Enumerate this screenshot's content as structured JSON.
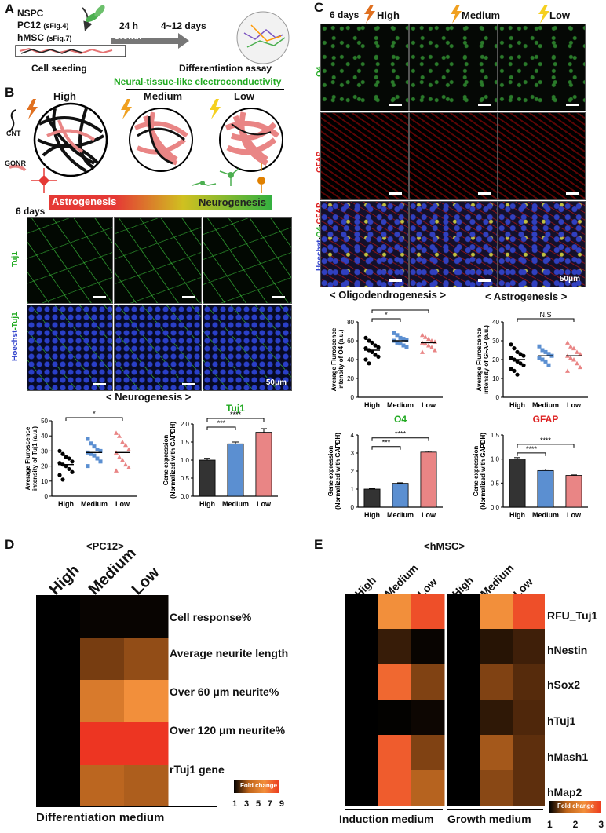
{
  "panelA": {
    "label": "A",
    "cells": [
      "NSPC",
      "PC12",
      "hMSC"
    ],
    "cell_refs": [
      "",
      "(sFig.4)",
      "(sFig.7)"
    ],
    "seeding": "Cell seeding",
    "time1": "24 h",
    "growth": "Growth",
    "time2": "4~12 days",
    "assay": "Differentiation assay"
  },
  "panelB": {
    "label": "B",
    "heading": "Neural-tissue-like electroconductivity",
    "levels": [
      "High",
      "Medium",
      "Low"
    ],
    "legend_cnt": "CNT",
    "legend_gonr": "GONR",
    "astro": "Astrogenesis",
    "neuro": "Neurogenesis",
    "days": "6 days",
    "row1": "Tuj1",
    "row2_a": "Hoechst",
    "row2_b": "-Tuj1",
    "scale": "50μm",
    "caption": "< Neurogenesis >",
    "dot_title": "",
    "dot_ylabel": "Average Fluroscence intensity of Tuj1 (a.u.)",
    "bar_title": "Tuj1",
    "bar_ylabel_1": "Gene expression",
    "bar_ylabel_2": "(Normalized with GAPDH)"
  },
  "panelC": {
    "label": "C",
    "days": "6 days",
    "levels": [
      "High",
      "Medium",
      "Low"
    ],
    "row1": "O4",
    "row2": "GFAP",
    "row3": "Hoechst-O4-GFAP",
    "scale": "50μm",
    "caption_left": "< Oligodendrogenesis >",
    "caption_right": "< Astrogenesis >",
    "o4_ylabel": "Average Fluroscence intensity of O4 (a.u.)",
    "gfap_ylabel": "Average Fluroscence intensity of GFAP (a.u.)",
    "ns": "N.S",
    "o4_bar_title": "O4",
    "gfap_bar_title": "GFAP"
  },
  "panelD": {
    "label": "D",
    "title": "<PC12>",
    "cols": [
      "High",
      "Medium",
      "Low"
    ],
    "rows": [
      "Cell response%",
      "Average neurite length",
      "Over 60 μm neurite%",
      "Over 120 μm neurite%",
      "rTuj1 gene"
    ],
    "footer": "Differentiation medium",
    "legend_title": "Fold change",
    "legend_ticks": [
      "1",
      "3",
      "5",
      "7",
      "9"
    ]
  },
  "panelE": {
    "label": "E",
    "title": "<hMSC>",
    "cols": [
      "High",
      "Medium",
      "Low",
      "High",
      "Medium",
      "Low"
    ],
    "rows": [
      "RFU_Tuj1",
      "hNestin",
      "hSox2",
      "hTuj1",
      "hMash1",
      "hMap2"
    ],
    "footer_left": "Induction medium",
    "footer_right": "Growth medium",
    "legend_title": "Fold change",
    "legend_ticks": [
      "1",
      "2",
      "3"
    ]
  },
  "chart_data": [
    {
      "type": "scatter",
      "panel": "B-dot",
      "categories": [
        "High",
        "Medium",
        "Low"
      ],
      "ylabel": "Average Fluroscence intensity of Tuj1 (a.u.)",
      "ylim": [
        0,
        50
      ],
      "yticks": [
        0,
        10,
        20,
        30,
        40,
        50
      ],
      "means": [
        21,
        29,
        29
      ],
      "significance": [
        {
          "pair": [
            "High",
            "Low"
          ],
          "label": "*"
        }
      ],
      "points": [
        [
          30,
          28,
          26,
          25,
          23,
          22,
          21,
          20,
          18,
          16,
          14,
          11
        ],
        [
          38,
          35,
          33,
          31,
          30,
          29,
          28,
          27,
          25,
          23,
          20
        ],
        [
          42,
          40,
          36,
          34,
          31,
          29,
          26,
          24,
          21,
          19,
          17
        ]
      ]
    },
    {
      "type": "bar",
      "panel": "B-bar",
      "title": "Tuj1",
      "categories": [
        "High",
        "Medium",
        "Low"
      ],
      "values": [
        1.0,
        1.45,
        1.77
      ],
      "errors": [
        0.05,
        0.05,
        0.1
      ],
      "ylabel": "Gene expression (Normalized with GAPDH)",
      "ylim": [
        0,
        2.0
      ],
      "yticks": [
        "0.0",
        "0.5",
        "1.0",
        "1.5",
        "2.0"
      ],
      "colors": [
        "#333333",
        "#5b8fd1",
        "#e98585"
      ],
      "significance": [
        {
          "pair": [
            "High",
            "Medium"
          ],
          "label": "***"
        },
        {
          "pair": [
            "High",
            "Low"
          ],
          "label": "****"
        }
      ]
    },
    {
      "type": "scatter",
      "panel": "C-O4-dot",
      "categories": [
        "High",
        "Medium",
        "Low"
      ],
      "ylabel": "Average Fluroscence intensity of O4 (a.u.)",
      "ylim": [
        0,
        80
      ],
      "yticks": [
        0,
        20,
        40,
        60,
        80
      ],
      "means": [
        50,
        60,
        58
      ],
      "significance": [
        {
          "pair": [
            "High",
            "Medium"
          ],
          "label": "*"
        },
        {
          "pair": [
            "High",
            "Low"
          ],
          "label": ""
        }
      ],
      "points": [
        [
          63,
          60,
          58,
          55,
          53,
          52,
          50,
          48,
          45,
          43,
          40,
          36
        ],
        [
          68,
          66,
          63,
          62,
          61,
          60,
          58,
          57,
          55,
          53
        ],
        [
          66,
          64,
          62,
          60,
          59,
          58,
          57,
          55,
          53,
          50,
          48
        ]
      ]
    },
    {
      "type": "scatter",
      "panel": "C-GFAP-dot",
      "categories": [
        "High",
        "Medium",
        "Low"
      ],
      "ylabel": "Average Fluroscence intensity of GFAP (a.u.)",
      "ylim": [
        0,
        40
      ],
      "yticks": [
        0,
        10,
        20,
        30,
        40
      ],
      "means": [
        20,
        22,
        22
      ],
      "significance": [
        {
          "pair": [
            "High",
            "Low"
          ],
          "label": "N.S"
        }
      ],
      "points": [
        [
          28,
          26,
          24,
          23,
          22,
          21,
          20,
          19,
          18,
          17,
          15,
          14,
          12
        ],
        [
          27,
          25,
          24,
          23,
          22,
          21,
          20,
          19,
          17
        ],
        [
          29,
          27,
          26,
          24,
          23,
          22,
          21,
          20,
          18,
          16,
          14
        ]
      ]
    },
    {
      "type": "bar",
      "panel": "C-O4-bar",
      "title": "O4",
      "categories": [
        "High",
        "Medium",
        "Low"
      ],
      "values": [
        1.0,
        1.32,
        3.05
      ],
      "errors": [
        0.02,
        0.03,
        0.05
      ],
      "ylabel": "Gene expression (Normalized with GAPDH)",
      "ylim": [
        0,
        4
      ],
      "yticks": [
        "0",
        "1",
        "2",
        "3",
        "4"
      ],
      "colors": [
        "#333333",
        "#5b8fd1",
        "#e98585"
      ],
      "significance": [
        {
          "pair": [
            "High",
            "Medium"
          ],
          "label": "***"
        },
        {
          "pair": [
            "High",
            "Low"
          ],
          "label": "****"
        }
      ]
    },
    {
      "type": "bar",
      "panel": "C-GFAP-bar",
      "title": "GFAP",
      "categories": [
        "High",
        "Medium",
        "Low"
      ],
      "values": [
        1.0,
        0.76,
        0.66
      ],
      "errors": [
        0.03,
        0.03,
        0.01
      ],
      "ylabel": "Gene expression (Normalized with GAPDH)",
      "ylim": [
        0,
        1.5
      ],
      "yticks": [
        "0.0",
        "0.5",
        "1.0",
        "1.5"
      ],
      "colors": [
        "#333333",
        "#5b8fd1",
        "#e98585"
      ],
      "significance": [
        {
          "pair": [
            "High",
            "Medium"
          ],
          "label": "****"
        },
        {
          "pair": [
            "High",
            "Low"
          ],
          "label": "****"
        }
      ]
    },
    {
      "type": "heatmap",
      "panel": "D",
      "columns": [
        "High",
        "Medium",
        "Low"
      ],
      "rows": [
        "Cell response%",
        "Average neurite length",
        "Over 60 μm neurite%",
        "Over 120 μm neurite%",
        "rTuj1 gene"
      ],
      "values": [
        [
          1,
          1.2,
          1.2
        ],
        [
          1,
          4.0,
          4.6
        ],
        [
          1,
          6.4,
          7.4
        ],
        [
          1,
          8.8,
          8.8
        ],
        [
          1,
          5.5,
          5.2
        ]
      ],
      "colorbar": {
        "label": "Fold change",
        "range": [
          1,
          9
        ],
        "ticks": [
          1,
          3,
          5,
          7,
          9
        ]
      }
    },
    {
      "type": "heatmap",
      "panel": "E",
      "columns": [
        "High",
        "Medium",
        "Low",
        "High",
        "Medium",
        "Low"
      ],
      "groups": [
        {
          "name": "Induction medium",
          "columns": [
            0,
            1,
            2
          ]
        },
        {
          "name": "Growth medium",
          "columns": [
            3,
            4,
            5
          ]
        }
      ],
      "rows": [
        "RFU_Tuj1",
        "hNestin",
        "hSox2",
        "hTuj1",
        "hMash1",
        "hMap2"
      ],
      "values": [
        [
          1,
          2.6,
          2.85,
          1,
          2.6,
          2.85
        ],
        [
          1,
          1.35,
          1.05,
          1,
          1.25,
          1.4
        ],
        [
          1,
          2.75,
          1.8,
          1,
          1.8,
          1.55
        ],
        [
          1,
          1.02,
          1.08,
          1,
          1.3,
          1.5
        ],
        [
          1,
          2.8,
          1.8,
          1,
          2.0,
          1.6
        ],
        [
          1,
          2.8,
          2.1,
          1,
          1.85,
          1.6
        ]
      ],
      "colorbar": {
        "label": "Fold change",
        "range": [
          1,
          3
        ],
        "ticks": [
          1,
          2,
          3
        ]
      }
    }
  ]
}
